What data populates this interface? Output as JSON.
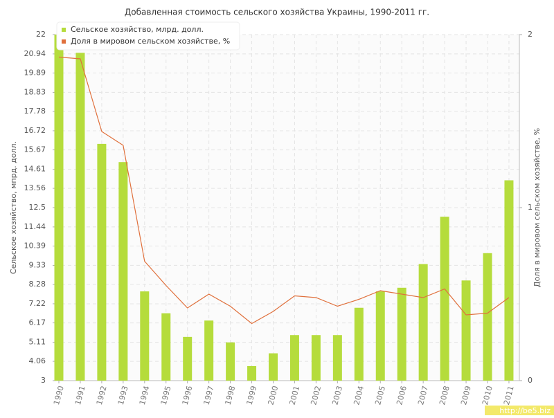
{
  "chart_data": {
    "type": "bar-line",
    "title": "Добавленная стоимость сельского хозяйства Украины, 1990-2011 гг.",
    "ylabel": "Сельское хозяйство, мпрд. долл.",
    "y2label": "Доля в мировом сельском хозяйстве, %",
    "watermark": "http://be5.biz",
    "categories": [
      "1990",
      "1991",
      "1992",
      "1993",
      "1994",
      "1995",
      "1996",
      "1997",
      "1998",
      "1999",
      "2000",
      "2001",
      "2002",
      "2003",
      "2004",
      "2005",
      "2006",
      "2007",
      "2008",
      "2009",
      "2010",
      "2011"
    ],
    "series": [
      {
        "name": "Сельское хозяйство, млрд. долл.",
        "color": "#b5dc3c",
        "type": "bar",
        "values": [
          22,
          21.0,
          16.0,
          15.0,
          7.9,
          6.7,
          5.4,
          6.3,
          5.1,
          3.8,
          4.5,
          5.5,
          5.5,
          5.5,
          7.0,
          7.9,
          8.1,
          9.4,
          12.0,
          8.5,
          10.0,
          14.0
        ]
      },
      {
        "name": "Доля в мировом сельском хозяйстве, %",
        "color": "#e0703c",
        "type": "line",
        "axis": "y2",
        "values": [
          1.87,
          1.86,
          1.44,
          1.36,
          0.69,
          0.55,
          0.42,
          0.5,
          0.43,
          0.33,
          0.4,
          0.49,
          0.48,
          0.43,
          0.47,
          0.52,
          0.5,
          0.48,
          0.53,
          0.38,
          0.39,
          0.48
        ]
      }
    ],
    "ylim": [
      3,
      22
    ],
    "yticks": [
      3,
      4.06,
      5.11,
      6.17,
      7.22,
      8.28,
      9.33,
      10.39,
      11.44,
      12.5,
      13.56,
      14.61,
      15.67,
      16.72,
      17.78,
      18.83,
      19.89,
      20.94,
      22
    ],
    "y2lim": [
      0,
      2
    ],
    "y2ticks": [
      0,
      1,
      2
    ],
    "grid": true,
    "legend": "top-left"
  }
}
